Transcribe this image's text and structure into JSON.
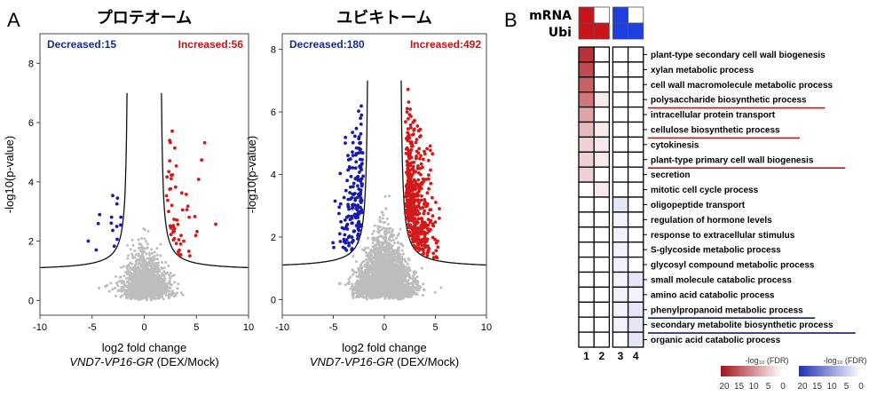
{
  "panel_labels": {
    "a": "A",
    "b": "B"
  },
  "colors": {
    "decreased": "#1a1aa8",
    "increased": "#d11a1a",
    "background_points": "#bdbdbd",
    "curve": "#111111"
  },
  "chart_data": [
    {
      "type": "scatter",
      "title": "プロテオーム",
      "xlabel": "log2 fold change",
      "xlabel2_italic": "VND7-VP16-GR",
      "xlabel2_rest": " (DEX/Mock)",
      "ylabel": "-log10(p-value)",
      "xlim": [
        -10,
        10
      ],
      "ylim": [
        -0.5,
        9
      ],
      "xticks": [
        "-10",
        "-5",
        "0",
        "5",
        "10"
      ],
      "yticks": [
        "0",
        "2",
        "4",
        "6",
        "8"
      ],
      "decreased_label": "Decreased:15",
      "increased_label": "Increased:56",
      "series": [
        {
          "name": "Decreased",
          "count": 15
        },
        {
          "name": "Increased",
          "count": 56
        }
      ],
      "threshold_curve": {
        "x0": 1.6,
        "asymptote_left": -1.6,
        "baseline": 1.0
      }
    },
    {
      "type": "scatter",
      "title": "ユビキトーム",
      "xlabel": "log2 fold change",
      "xlabel2_italic": "VND7-VP16-GR",
      "xlabel2_rest": " (DEX/Mock)",
      "ylabel": "-log10(p-value)",
      "xlim": [
        -10,
        10
      ],
      "ylim": [
        -0.5,
        8.5
      ],
      "xticks": [
        "-10",
        "-5",
        "0",
        "5",
        "10"
      ],
      "yticks": [
        "0",
        "2",
        "4",
        "6",
        "8"
      ],
      "decreased_label": "Decreased:180",
      "increased_label": "Increased:492",
      "series": [
        {
          "name": "Decreased",
          "count": 180
        },
        {
          "name": "Increased",
          "count": 492
        }
      ],
      "threshold_curve": {
        "x0": 1.6,
        "asymptote_left": -1.6,
        "baseline": 1.0
      }
    },
    {
      "type": "heatmap",
      "row_labels_top": [
        "mRNA",
        "Ubi"
      ],
      "top_cells": [
        [
          "#c8151b",
          "#ffffff",
          "#1f3fe0",
          "#ffffff"
        ],
        [
          "#c8151b",
          "#c8151b",
          "#1f3fe0",
          "#1f3fe0"
        ]
      ],
      "columns": [
        "1",
        "2",
        "3",
        "4"
      ],
      "terms": [
        {
          "label": "plant-type secondary cell wall biogenesis",
          "underline": ""
        },
        {
          "label": "xylan metabolic process",
          "underline": ""
        },
        {
          "label": "cell wall macromolecule metabolic process",
          "underline": ""
        },
        {
          "label": "polysaccharide biosynthetic process",
          "underline": "red"
        },
        {
          "label": "intracellular protein transport",
          "underline": ""
        },
        {
          "label": "cellulose biosynthetic process",
          "underline": "red"
        },
        {
          "label": "cytokinesis",
          "underline": ""
        },
        {
          "label": "plant-type primary cell wall biogenesis",
          "underline": "red"
        },
        {
          "label": "secretion",
          "underline": ""
        },
        {
          "label": "mitotic cell cycle process",
          "underline": ""
        },
        {
          "label": "oligopeptide transport",
          "underline": ""
        },
        {
          "label": "regulation of hormone levels",
          "underline": ""
        },
        {
          "label": "response to extracellular stimulus",
          "underline": ""
        },
        {
          "label": "S-glycoside metabolic process",
          "underline": ""
        },
        {
          "label": "glycosyl compound metabolic process",
          "underline": ""
        },
        {
          "label": "small molecule catabolic process",
          "underline": ""
        },
        {
          "label": "amino acid catabolic process",
          "underline": ""
        },
        {
          "label": "phenylpropanoid metabolic process",
          "underline": "blue"
        },
        {
          "label": "secondary metabolite biosynthetic process",
          "underline": "blue"
        },
        {
          "label": "organic acid catabolic process",
          "underline": ""
        }
      ],
      "values": [
        [
          9,
          0,
          0,
          0
        ],
        [
          8,
          0,
          0,
          0
        ],
        [
          7,
          0,
          0,
          0
        ],
        [
          6,
          1,
          0,
          0
        ],
        [
          4,
          0,
          0,
          0
        ],
        [
          3,
          1,
          0,
          0
        ],
        [
          2,
          1,
          0,
          0
        ],
        [
          2,
          1,
          0,
          0
        ],
        [
          2,
          0,
          0,
          0
        ],
        [
          0,
          1,
          0,
          0
        ],
        [
          0,
          0,
          2,
          0
        ],
        [
          0,
          0,
          1,
          0
        ],
        [
          0,
          0,
          1,
          0
        ],
        [
          0,
          0,
          1,
          0
        ],
        [
          0,
          0,
          1,
          0
        ],
        [
          0,
          0,
          1,
          2
        ],
        [
          0,
          0,
          1,
          1
        ],
        [
          0,
          0,
          1,
          2
        ],
        [
          0,
          0,
          1,
          2
        ],
        [
          0,
          0,
          0,
          2
        ]
      ],
      "legend": {
        "red": {
          "title": "-log₁₀ (FDR)",
          "ticks": [
            "20",
            "15",
            "10",
            "5",
            "0"
          ]
        },
        "blue": {
          "title": "-log₁₀ (FDR)",
          "ticks": [
            "20",
            "15",
            "10",
            "5",
            "0"
          ]
        }
      }
    }
  ]
}
